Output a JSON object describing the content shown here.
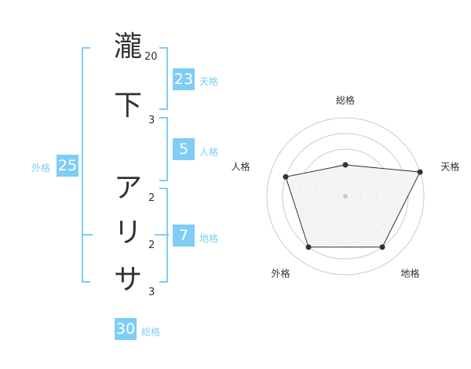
{
  "name": {
    "chars": [
      {
        "char": "瀧",
        "strokes": "20"
      },
      {
        "char": "下",
        "strokes": "3"
      },
      {
        "char": "ア",
        "strokes": "2"
      },
      {
        "char": "リ",
        "strokes": "2"
      },
      {
        "char": "サ",
        "strokes": "3"
      }
    ]
  },
  "kaku": {
    "tenkaku": {
      "value": "23",
      "label": "天格"
    },
    "jinkaku": {
      "value": "5",
      "label": "人格"
    },
    "chikaku": {
      "value": "7",
      "label": "地格"
    },
    "gaikaku": {
      "value": "25",
      "label": "外格"
    },
    "soukaku": {
      "value": "30",
      "label": "総格"
    }
  },
  "colors": {
    "accent": "#7fcdf5",
    "polygon_fill": "#f2f2f2",
    "ring": "#cccccc"
  },
  "chart_data": {
    "type": "radar",
    "axes": [
      "総格",
      "天格",
      "地格",
      "外格",
      "人格"
    ],
    "values": [
      2,
      5,
      4,
      4,
      4
    ],
    "max": 5,
    "rings": 5
  }
}
